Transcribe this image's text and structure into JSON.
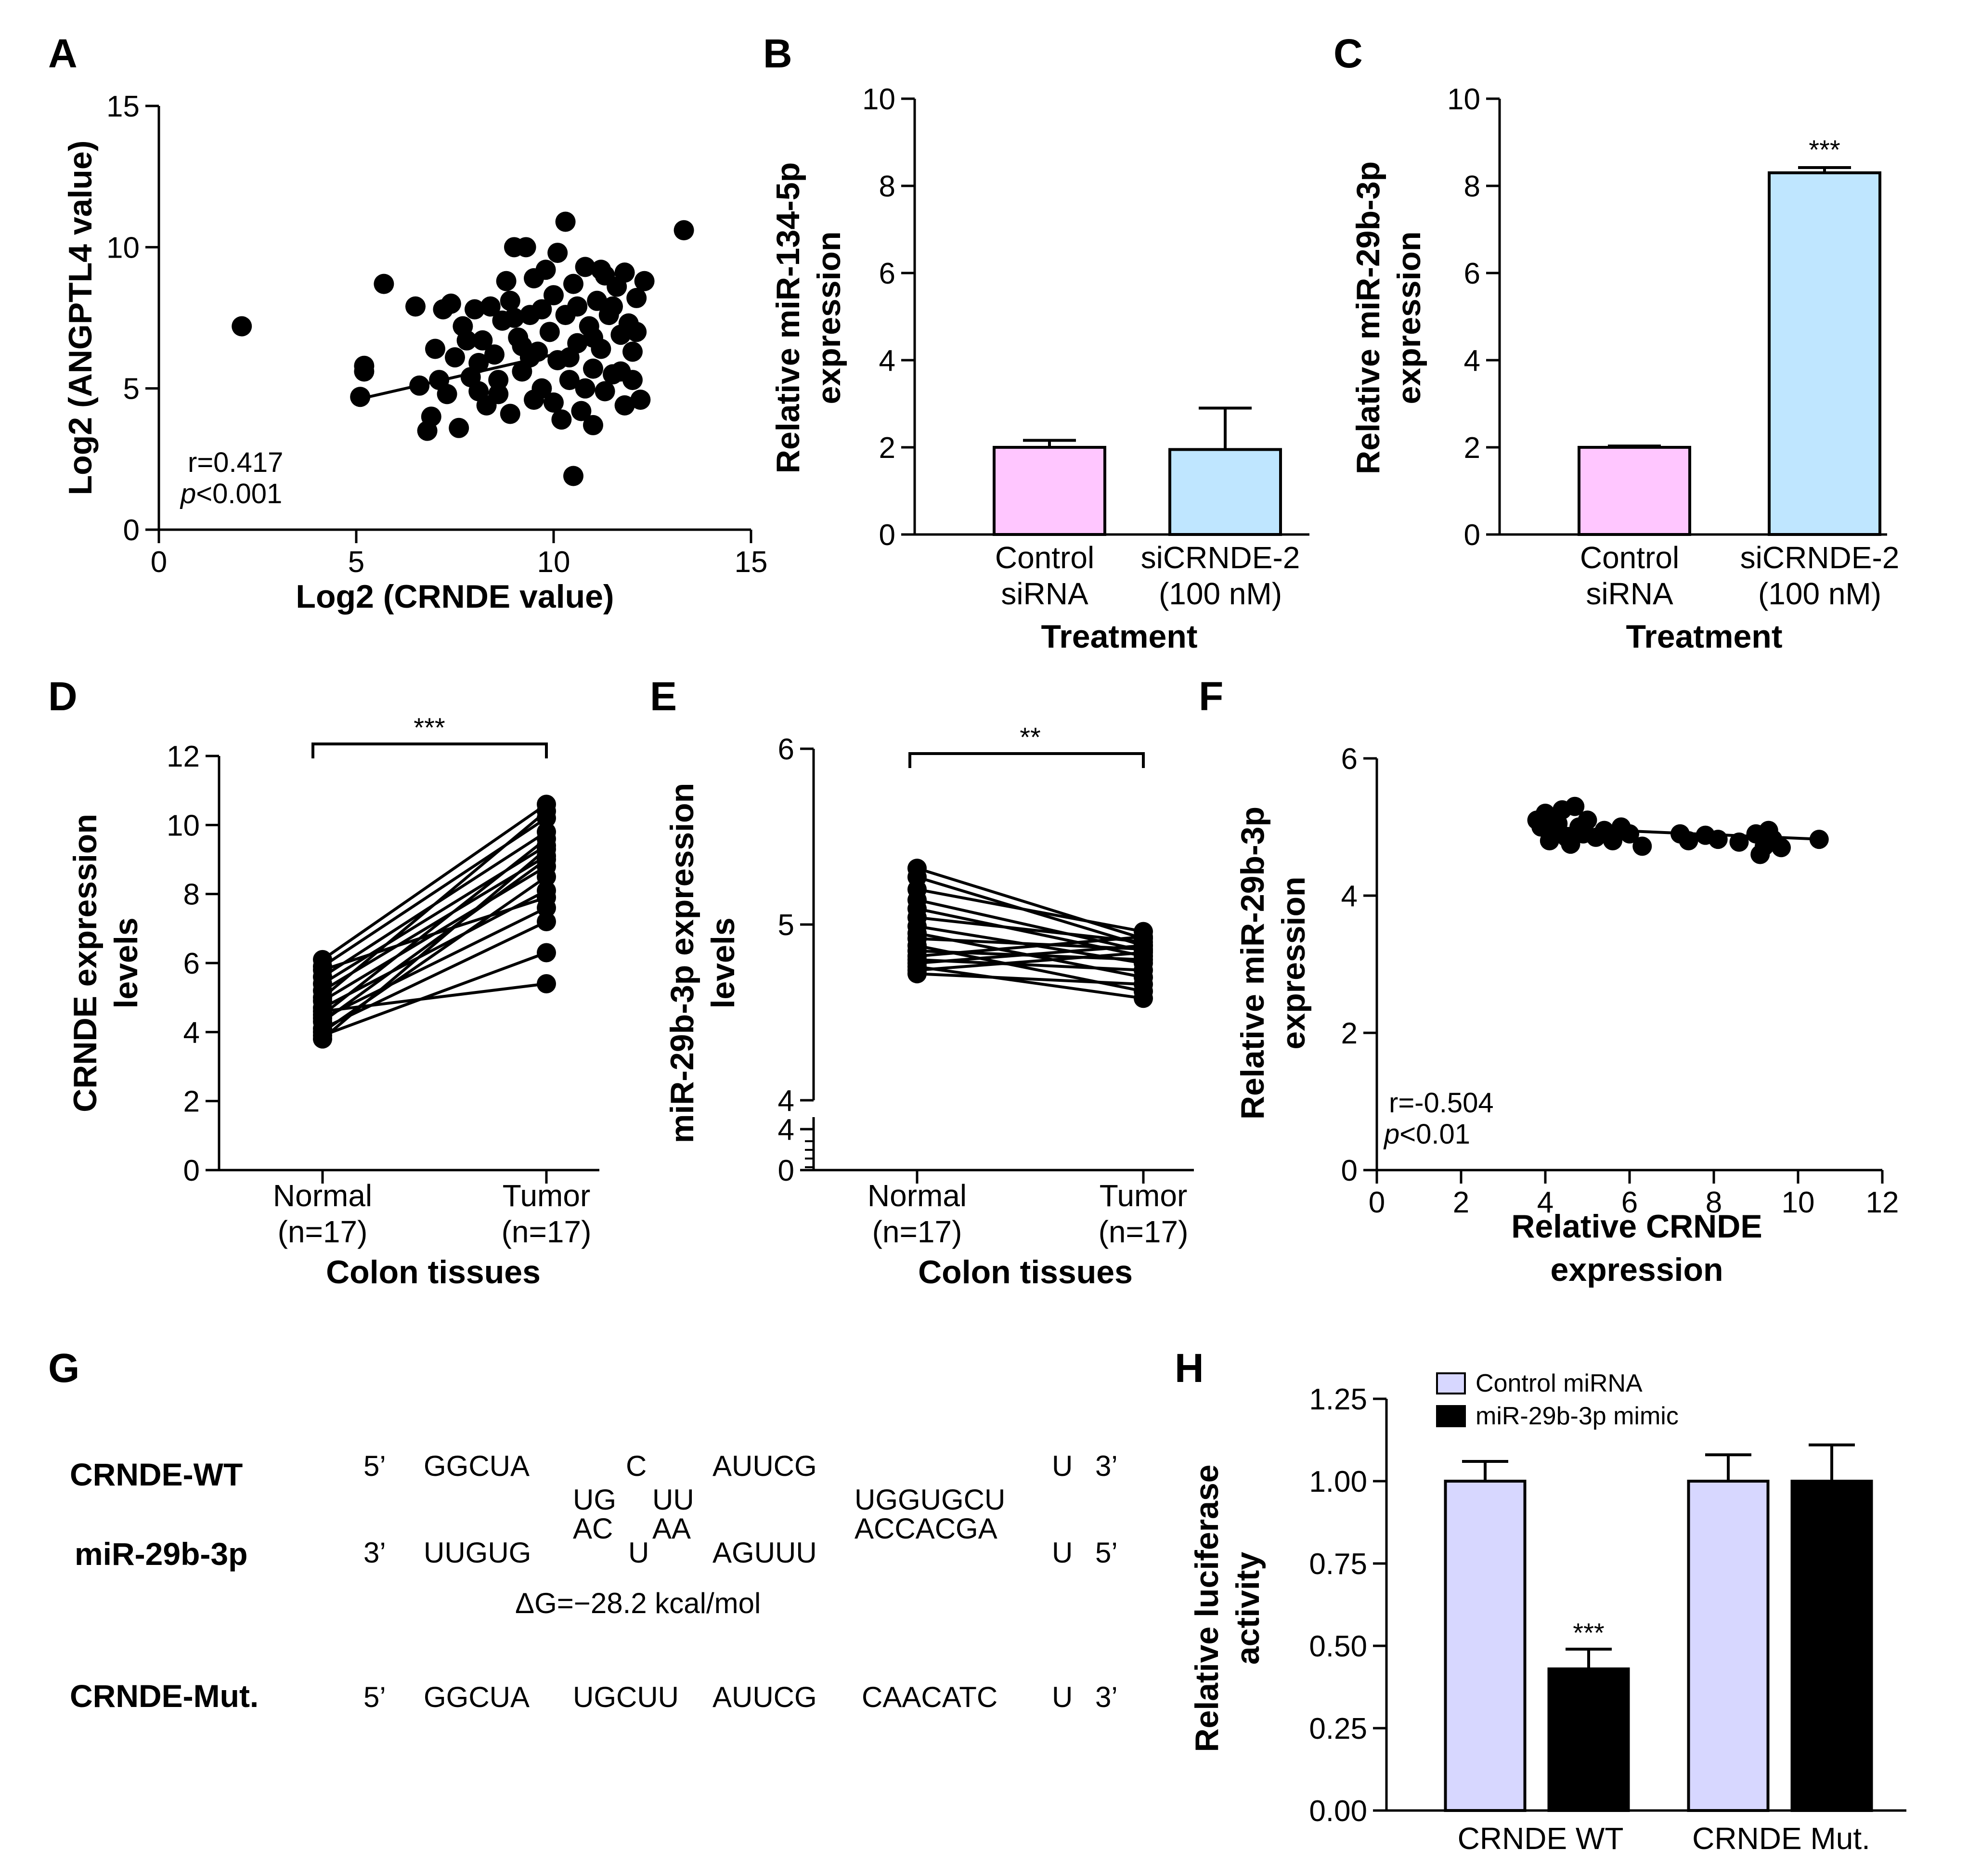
{
  "colors": {
    "pink": "#ffc6ff",
    "lightblue": "#bfe6ff",
    "lavender": "#d7d7ff",
    "black": "#000000",
    "red": "#ee1111",
    "blue": "#1c1ca8"
  },
  "chart_data": [
    {
      "type": "scatter",
      "panel": "A",
      "xlabel": "Log2 (CRNDE value)",
      "ylabel": "Log2 (ANGPTL4 value)",
      "xlim": [
        0,
        15
      ],
      "ylim": [
        0,
        15
      ],
      "xticks": [
        "0",
        "5",
        "10",
        "15"
      ],
      "yticks": [
        "0",
        "5",
        "10",
        "15"
      ],
      "stat_r": "r=0.417",
      "stat_p_italic": "p",
      "stat_p_rest": "<0.001",
      "trendline": {
        "x": [
          5,
          10
        ],
        "y": [
          4.6,
          6.2
        ]
      },
      "points": [
        [
          2.1,
          7.2
        ],
        [
          5.7,
          8.7
        ],
        [
          5.1,
          4.7
        ],
        [
          5.2,
          5.8
        ],
        [
          5.2,
          5.6
        ],
        [
          6.6,
          5.1
        ],
        [
          6.8,
          3.5
        ],
        [
          6.9,
          4.0
        ],
        [
          7.0,
          6.4
        ],
        [
          7.1,
          5.3
        ],
        [
          7.3,
          4.8
        ],
        [
          7.2,
          7.8
        ],
        [
          7.5,
          6.1
        ],
        [
          7.6,
          3.6
        ],
        [
          7.7,
          7.2
        ],
        [
          7.9,
          5.4
        ],
        [
          8.0,
          7.8
        ],
        [
          8.1,
          5.9
        ],
        [
          8.2,
          6.7
        ],
        [
          8.3,
          4.4
        ],
        [
          8.4,
          7.9
        ],
        [
          8.5,
          6.2
        ],
        [
          8.6,
          5.3
        ],
        [
          8.7,
          7.4
        ],
        [
          8.8,
          8.8
        ],
        [
          8.9,
          4.1
        ],
        [
          9.0,
          10.0
        ],
        [
          9.1,
          6.8
        ],
        [
          9.2,
          5.6
        ],
        [
          9.3,
          10.0
        ],
        [
          9.4,
          7.6
        ],
        [
          9.5,
          4.6
        ],
        [
          9.5,
          8.9
        ],
        [
          9.6,
          6.3
        ],
        [
          9.7,
          5.0
        ],
        [
          9.8,
          9.2
        ],
        [
          9.9,
          7.0
        ],
        [
          10.0,
          4.5
        ],
        [
          10.0,
          8.3
        ],
        [
          10.1,
          6.0
        ],
        [
          10.2,
          3.9
        ],
        [
          10.3,
          10.9
        ],
        [
          10.3,
          7.6
        ],
        [
          10.4,
          5.3
        ],
        [
          10.5,
          8.7
        ],
        [
          10.5,
          1.9
        ],
        [
          10.6,
          6.6
        ],
        [
          10.7,
          4.2
        ],
        [
          10.8,
          9.3
        ],
        [
          10.9,
          7.2
        ],
        [
          11.0,
          5.7
        ],
        [
          11.0,
          3.7
        ],
        [
          11.1,
          8.1
        ],
        [
          11.2,
          6.4
        ],
        [
          11.3,
          4.9
        ],
        [
          11.3,
          9.0
        ],
        [
          11.4,
          7.6
        ],
        [
          11.5,
          5.5
        ],
        [
          11.6,
          8.6
        ],
        [
          11.7,
          6.9
        ],
        [
          11.8,
          4.4
        ],
        [
          11.8,
          9.1
        ],
        [
          11.9,
          7.3
        ],
        [
          12.0,
          5.3
        ],
        [
          12.0,
          6.3
        ],
        [
          12.1,
          8.2
        ],
        [
          12.2,
          4.6
        ],
        [
          12.3,
          8.8
        ],
        [
          9.2,
          6.5
        ],
        [
          10.4,
          6.1
        ],
        [
          11.0,
          6.8
        ],
        [
          8.9,
          8.1
        ],
        [
          9.7,
          7.8
        ],
        [
          10.8,
          5.0
        ],
        [
          7.8,
          6.7
        ],
        [
          8.6,
          4.8
        ],
        [
          11.5,
          7.9
        ],
        [
          10.1,
          9.8
        ],
        [
          13.3,
          10.6
        ],
        [
          6.5,
          7.9
        ],
        [
          7.4,
          8.0
        ],
        [
          9.0,
          7.5
        ],
        [
          9.4,
          6.1
        ],
        [
          10.6,
          7.9
        ],
        [
          11.2,
          9.2
        ],
        [
          12.1,
          7.0
        ],
        [
          8.1,
          4.9
        ],
        [
          11.7,
          5.6
        ]
      ]
    },
    {
      "type": "bar",
      "panel": "B",
      "ylabel_line1": "Relative miR-134-5p",
      "ylabel_line2": "expression",
      "xlabel": "Treatment",
      "ylim": [
        0,
        10
      ],
      "yticks": [
        "0",
        "2",
        "4",
        "6",
        "8",
        "10"
      ],
      "categories": [
        [
          "Control",
          "siRNA"
        ],
        [
          "siCRNDE-2",
          "(100 nM)"
        ]
      ],
      "values": [
        2.0,
        1.95
      ],
      "errors": [
        0.16,
        0.95
      ],
      "annotations": [
        "",
        ""
      ]
    },
    {
      "type": "bar",
      "panel": "C",
      "ylabel_line1": "Relative miR-29b-3p",
      "ylabel_line2": "expression",
      "xlabel": "Treatment",
      "ylim": [
        0,
        10
      ],
      "yticks": [
        "0",
        "2",
        "4",
        "6",
        "8",
        "10"
      ],
      "categories": [
        [
          "Control",
          "siRNA"
        ],
        [
          "siCRNDE-2",
          "(100 nM)"
        ]
      ],
      "values": [
        2.0,
        8.3
      ],
      "errors": [
        0.03,
        0.12
      ],
      "annotations": [
        "",
        "***"
      ]
    },
    {
      "type": "line",
      "panel": "D",
      "ylabel_line1": "CRNDE expression",
      "ylabel_line2": "levels",
      "xlabel": "Colon tissues",
      "ylim": [
        0,
        12
      ],
      "yticks": [
        "0",
        "2",
        "4",
        "6",
        "8",
        "10",
        "12"
      ],
      "categories": [
        [
          "Normal",
          "(n=17)"
        ],
        [
          "Tumor",
          "(n=17)"
        ]
      ],
      "significance": "***",
      "pairs": [
        [
          6.1,
          10.6
        ],
        [
          5.9,
          10.2
        ],
        [
          5.6,
          9.8
        ],
        [
          5.4,
          9.4
        ],
        [
          5.2,
          9.1
        ],
        [
          5.0,
          10.4
        ],
        [
          4.9,
          8.8
        ],
        [
          4.7,
          8.1
        ],
        [
          4.5,
          9.6
        ],
        [
          4.4,
          7.6
        ],
        [
          4.3,
          9.0
        ],
        [
          4.1,
          7.2
        ],
        [
          4.0,
          8.5
        ],
        [
          3.9,
          6.3
        ],
        [
          3.8,
          9.3
        ],
        [
          4.6,
          5.4
        ],
        [
          5.8,
          7.9
        ]
      ]
    },
    {
      "type": "line",
      "panel": "E",
      "ylabel_line1": "miR-29b-3p expression",
      "ylabel_line2": "levels",
      "xlabel": "Colon tissues",
      "yticks_upper": [
        "4",
        "5",
        "6"
      ],
      "yticks_lower": [
        "0",
        "4"
      ],
      "ylim_upper": [
        4,
        6
      ],
      "categories": [
        [
          "Normal",
          "(n=17)"
        ],
        [
          "Tumor",
          "(n=17)"
        ]
      ],
      "significance": "**",
      "pairs": [
        [
          5.32,
          4.92
        ],
        [
          5.27,
          4.88
        ],
        [
          5.2,
          4.96
        ],
        [
          5.14,
          4.85
        ],
        [
          5.09,
          4.82
        ],
        [
          5.04,
          4.9
        ],
        [
          4.99,
          4.78
        ],
        [
          4.95,
          4.7
        ],
        [
          4.92,
          4.86
        ],
        [
          4.88,
          4.62
        ],
        [
          4.85,
          4.8
        ],
        [
          4.82,
          4.93
        ],
        [
          4.8,
          4.74
        ],
        [
          4.78,
          4.88
        ],
        [
          4.76,
          4.58
        ],
        [
          4.74,
          4.84
        ],
        [
          4.72,
          4.66
        ]
      ]
    },
    {
      "type": "scatter",
      "panel": "F",
      "xlabel_line1": "Relative CRNDE",
      "xlabel_line2": "expression",
      "ylabel_line1": "Relative miR-29b-3p",
      "ylabel_line2": "expression",
      "xlim": [
        0,
        12
      ],
      "ylim": [
        0,
        6
      ],
      "xticks": [
        "0",
        "2",
        "4",
        "6",
        "8",
        "10",
        "12"
      ],
      "yticks": [
        "0",
        "2",
        "4",
        "6"
      ],
      "stat_r": "r=-0.504",
      "stat_p_italic": "p",
      "stat_p_rest": "<0.01",
      "trendline": {
        "x": [
          3.8,
          10.6
        ],
        "y": [
          5.0,
          4.82
        ]
      },
      "points": [
        [
          3.8,
          5.1
        ],
        [
          3.9,
          5.0
        ],
        [
          4.0,
          5.2
        ],
        [
          4.1,
          4.8
        ],
        [
          4.2,
          4.95
        ],
        [
          4.3,
          5.05
        ],
        [
          4.4,
          5.25
        ],
        [
          4.5,
          4.85
        ],
        [
          4.6,
          4.75
        ],
        [
          4.7,
          5.3
        ],
        [
          4.8,
          5.0
        ],
        [
          4.9,
          4.9
        ],
        [
          5.0,
          5.1
        ],
        [
          5.2,
          4.85
        ],
        [
          5.4,
          4.95
        ],
        [
          5.6,
          4.8
        ],
        [
          5.8,
          5.0
        ],
        [
          6.0,
          4.9
        ],
        [
          6.3,
          4.72
        ],
        [
          7.2,
          4.9
        ],
        [
          7.4,
          4.8
        ],
        [
          7.8,
          4.88
        ],
        [
          8.1,
          4.82
        ],
        [
          8.6,
          4.78
        ],
        [
          9.0,
          4.9
        ],
        [
          9.1,
          4.6
        ],
        [
          9.2,
          4.72
        ],
        [
          9.3,
          4.95
        ],
        [
          9.4,
          4.82
        ],
        [
          9.6,
          4.7
        ],
        [
          10.5,
          4.82
        ]
      ]
    },
    {
      "type": "bar",
      "panel": "H",
      "ylabel_line1": "Relative luciferase",
      "ylabel_line2": "activity",
      "ylim": [
        0,
        1.25
      ],
      "yticks": [
        "0.00",
        "0.25",
        "0.50",
        "0.75",
        "1.00",
        "1.25"
      ],
      "categories": [
        "CRNDE WT",
        "CRNDE Mut."
      ],
      "series": [
        {
          "name": "Control miRNA",
          "values": [
            1.0,
            1.0
          ],
          "errors": [
            0.06,
            0.08
          ]
        },
        {
          "name": "miR-29b-3p mimic",
          "values": [
            0.43,
            1.0
          ],
          "errors": [
            0.06,
            0.11
          ]
        }
      ],
      "annotations": [
        [
          "",
          "***"
        ],
        [
          "",
          ""
        ]
      ]
    }
  ],
  "panels": {
    "A": "A",
    "B": "B",
    "C": "C",
    "D": "D",
    "E": "E",
    "F": "F",
    "G": "G",
    "H": "H"
  },
  "sequence": {
    "wt_label": "CRNDE-WT",
    "mir_label": "miR-29b-3p",
    "mut_label": "CRNDE-Mut.",
    "five_prime": "5’",
    "three_prime": "3’",
    "wt_seg1": "GGCUA",
    "wt_bulge1": "C",
    "wt_bulge2": "UG",
    "wt_bulge3": "UU",
    "wt_seg2": "AUUCG",
    "wt_seed": "UGGUGCU",
    "wt_end": "U",
    "mir_seg1": "UUGUG",
    "mir_bulge1": "AC",
    "mir_bulge2": "U",
    "mir_bulge3": "AA",
    "mir_seg2": "AGUUU",
    "mir_seed": "ACCACGA",
    "mir_end": "U",
    "energy": "ΔG=−28.2  kcal/mol",
    "mut_seg1": "GGCUA",
    "mut_seg2": "UGCUU",
    "mut_seg3": "AUUCG",
    "mut_seed": "CAACATC",
    "mut_end": "U"
  }
}
